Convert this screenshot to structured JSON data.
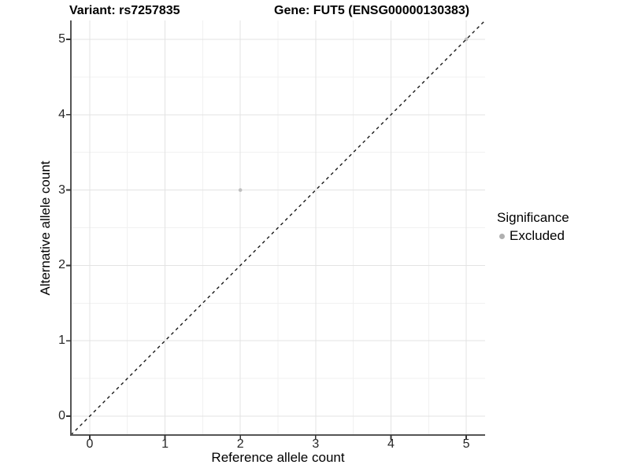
{
  "chart_data": {
    "type": "scatter",
    "titles": {
      "left": "Variant: rs7257835",
      "right": "Gene: FUT5 (ENSG00000130383)"
    },
    "xlabel": "Reference allele count",
    "ylabel": "Alternative allele count",
    "xlim": [
      -0.25,
      5.25
    ],
    "ylim": [
      -0.25,
      5.25
    ],
    "x_ticks": [
      0,
      1,
      2,
      3,
      4,
      5
    ],
    "y_ticks": [
      0,
      1,
      2,
      3,
      4,
      5
    ],
    "minor_gridlines": [
      0.5,
      1.5,
      2.5,
      3.5,
      4.5
    ],
    "grid": "major+minor",
    "identity_line": {
      "slope": 1,
      "intercept": 0,
      "style": "dashed"
    },
    "points": [
      {
        "x": 2,
        "y": 3,
        "significance": "Excluded"
      },
      {
        "x": 5,
        "y": 5,
        "significance": "Excluded"
      }
    ],
    "legend": {
      "title": "Significance",
      "position": "right",
      "items": [
        {
          "label": "Excluded",
          "color": "#b0b0b0"
        }
      ]
    },
    "colors": {
      "point": "#bfbfbf",
      "legend_dot": "#b0b0b0",
      "grid_major": "#e3e3e3",
      "grid_minor": "#f1f1f1",
      "axis_line": "#555555",
      "tick_mark": "#333333",
      "dashed_line": "#1a1a1a",
      "background": "#ffffff"
    }
  }
}
